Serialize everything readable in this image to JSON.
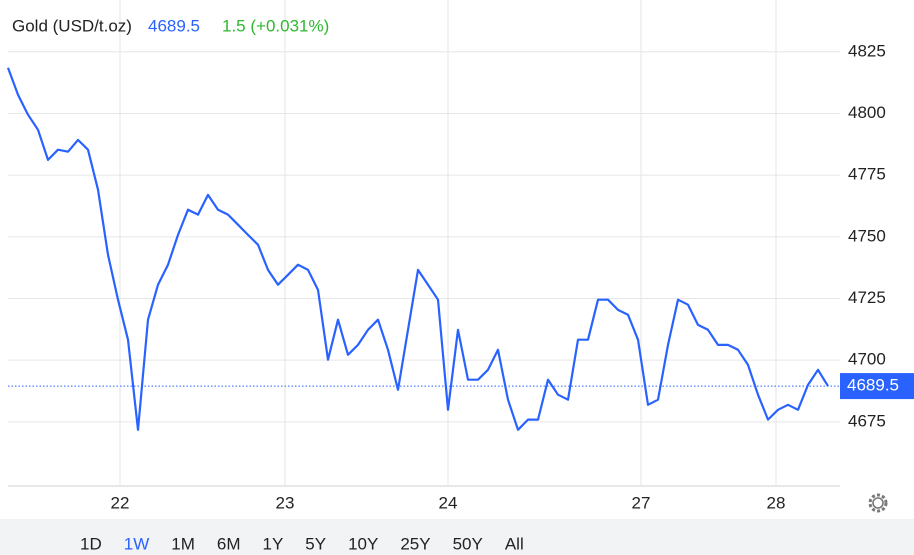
{
  "chart_data": {
    "type": "line",
    "title": "Gold (USD/t.oz)",
    "last_price": 4689.5,
    "change": "1.5 (+0.031%)",
    "x": [
      0,
      1,
      2,
      3,
      4,
      5,
      6,
      7,
      8,
      9,
      10,
      11,
      12,
      13,
      14,
      15,
      16,
      17,
      18,
      19,
      20,
      21,
      22,
      23,
      24,
      25,
      26,
      27,
      28,
      29,
      30,
      31,
      32,
      33,
      34,
      35,
      36,
      37,
      38,
      39,
      40,
      41,
      42,
      43,
      44,
      45,
      46,
      47,
      48,
      49,
      50,
      51,
      52,
      53,
      54,
      55,
      56,
      57,
      58,
      59,
      60,
      61,
      62,
      63,
      64,
      65,
      66,
      67,
      68,
      69,
      70,
      71,
      72,
      73,
      74,
      75,
      76,
      77,
      78,
      79,
      80,
      81,
      82
    ],
    "series": [
      {
        "name": "Gold",
        "color": "#2962ff",
        "values": [
          4818.5,
          4807.6,
          4799.5,
          4793.4,
          4781.2,
          4785.3,
          4784.5,
          4789.3,
          4785.3,
          4769.1,
          4742.7,
          4724.5,
          4708.3,
          4671.8,
          4716.4,
          4730.6,
          4738.7,
          4750.8,
          4761.0,
          4759.0,
          4767.0,
          4761.0,
          4759.0,
          4754.9,
          4750.8,
          4746.8,
          4736.6,
          4730.6,
          4734.6,
          4738.7,
          4736.6,
          4728.5,
          4700.2,
          4716.4,
          4702.2,
          4706.2,
          4712.3,
          4716.4,
          4704.2,
          4688.0,
          4712.3,
          4736.6,
          4730.6,
          4724.5,
          4679.9,
          4712.3,
          4692.1,
          4692.1,
          4696.1,
          4704.2,
          4684.0,
          4671.8,
          4675.9,
          4675.9,
          4692.1,
          4686.0,
          4684.0,
          4708.3,
          4708.3,
          4724.5,
          4724.5,
          4720.4,
          4718.4,
          4708.3,
          4681.9,
          4684.0,
          4706.2,
          4724.5,
          4722.5,
          4714.3,
          4712.3,
          4706.2,
          4706.2,
          4704.2,
          4698.1,
          4686.0,
          4675.9,
          4679.9,
          4681.9,
          4679.9,
          4690.0,
          4696.1,
          4689.5
        ]
      }
    ],
    "xlim": [
      0,
      83.2
    ],
    "xticks": [
      {
        "value": 11.2,
        "label": "22"
      },
      {
        "value": 27.7,
        "label": "23"
      },
      {
        "value": 44,
        "label": "24"
      },
      {
        "value": 63.3,
        "label": "27"
      },
      {
        "value": 76.8,
        "label": "28"
      }
    ],
    "ylim": [
      4649,
      4846
    ],
    "yticks": [
      4675,
      4700,
      4725,
      4750,
      4775,
      4800,
      4825
    ],
    "grid": true,
    "ranges": [
      "1D",
      "1W",
      "1M",
      "6M",
      "1Y",
      "5Y",
      "10Y",
      "25Y",
      "50Y",
      "All"
    ],
    "selected_range": "1W"
  }
}
